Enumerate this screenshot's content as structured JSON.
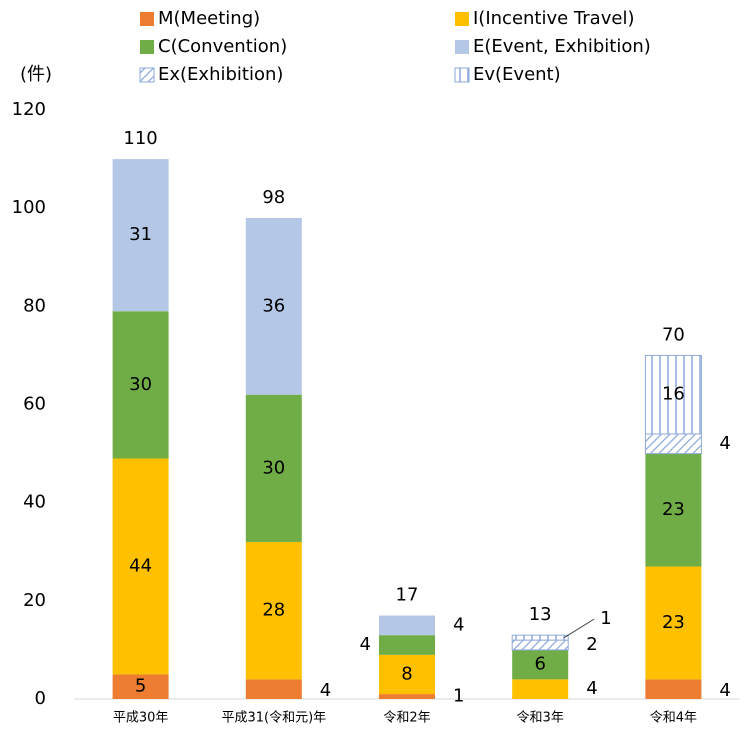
{
  "chart_data": {
    "type": "stacked_bar",
    "y_unit_label": "(件)",
    "categories": [
      "平成30年",
      "平成31(令和元)年",
      "令和2年",
      "令和3年",
      "令和4年"
    ],
    "series": [
      {
        "name": "M(Meeting)",
        "color": "#ed7d31",
        "values": [
          5,
          4,
          1,
          null,
          4
        ]
      },
      {
        "name": "I(Incentive Travel)",
        "color": "#ffc000",
        "values": [
          44,
          28,
          8,
          4,
          23
        ]
      },
      {
        "name": "C(Convention)",
        "color": "#70ad47",
        "values": [
          30,
          30,
          4,
          6,
          23
        ]
      },
      {
        "name": "E(Event, Exhibition)",
        "color": "#b4c7e7",
        "values": [
          31,
          36,
          4,
          null,
          null
        ]
      },
      {
        "name": "Ex(Exhibition)",
        "color": "#8faadc",
        "pattern": "diagonal",
        "values": [
          null,
          null,
          null,
          2,
          4
        ]
      },
      {
        "name": "Ev(Event)",
        "color": "#8faadc",
        "pattern": "vertical",
        "values": [
          null,
          null,
          null,
          1,
          16
        ]
      }
    ],
    "totals": [
      110,
      98,
      17,
      13,
      70
    ],
    "ylim": [
      0,
      120
    ],
    "yticks": [
      0,
      20,
      40,
      60,
      80,
      100,
      120
    ],
    "legend": "top"
  }
}
